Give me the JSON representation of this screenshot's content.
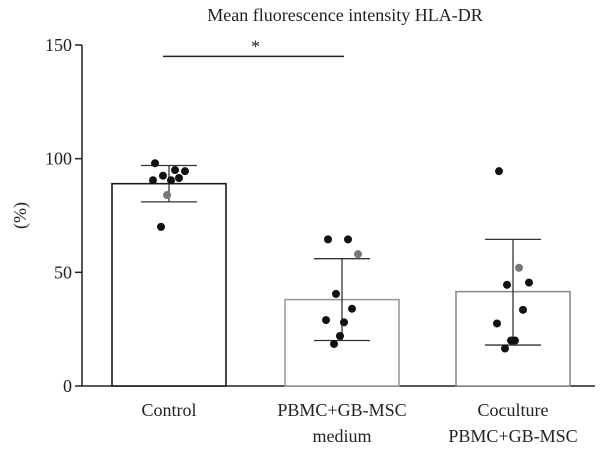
{
  "chart_data": {
    "type": "bar",
    "title": "Mean fluorescence intensity HLA-DR",
    "ylabel": "(%)",
    "xlabel": "",
    "ylim": [
      0,
      150
    ],
    "yticks": [
      0,
      50,
      100,
      150
    ],
    "categories": [
      [
        "Control"
      ],
      [
        "PBMC+GB-MSC",
        "medium"
      ],
      [
        "Coculture",
        "PBMC+GB-MSC"
      ]
    ],
    "values": [
      89,
      38,
      41.5
    ],
    "error": [
      [
        81,
        97
      ],
      [
        20,
        56
      ],
      [
        18,
        64.5
      ]
    ],
    "bar_edge_colors": [
      "#1a1a1a",
      "#9a9a9a",
      "#8a8a8a"
    ],
    "points": [
      [
        98,
        95,
        94.5,
        92.5,
        91.5,
        90.5,
        90.5,
        84,
        70
      ],
      [
        64.5,
        64.5,
        58,
        40.5,
        34,
        29,
        28,
        22,
        18.5
      ],
      [
        94.5,
        52,
        45.5,
        44.5,
        33.5,
        27.5,
        20,
        20,
        16.5
      ]
    ],
    "point_colors": [
      [
        "#111",
        "#111",
        "#111",
        "#111",
        "#111",
        "#111",
        "#111",
        "#777",
        "#111"
      ],
      [
        "#111",
        "#111",
        "#777",
        "#111",
        "#111",
        "#111",
        "#111",
        "#111",
        "#111"
      ],
      [
        "#111",
        "#777",
        "#111",
        "#111",
        "#111",
        "#111",
        "#111",
        "#111",
        "#111"
      ]
    ],
    "significance": {
      "from": 0,
      "to": 1,
      "label": "*",
      "y": 145
    },
    "grid": false
  }
}
